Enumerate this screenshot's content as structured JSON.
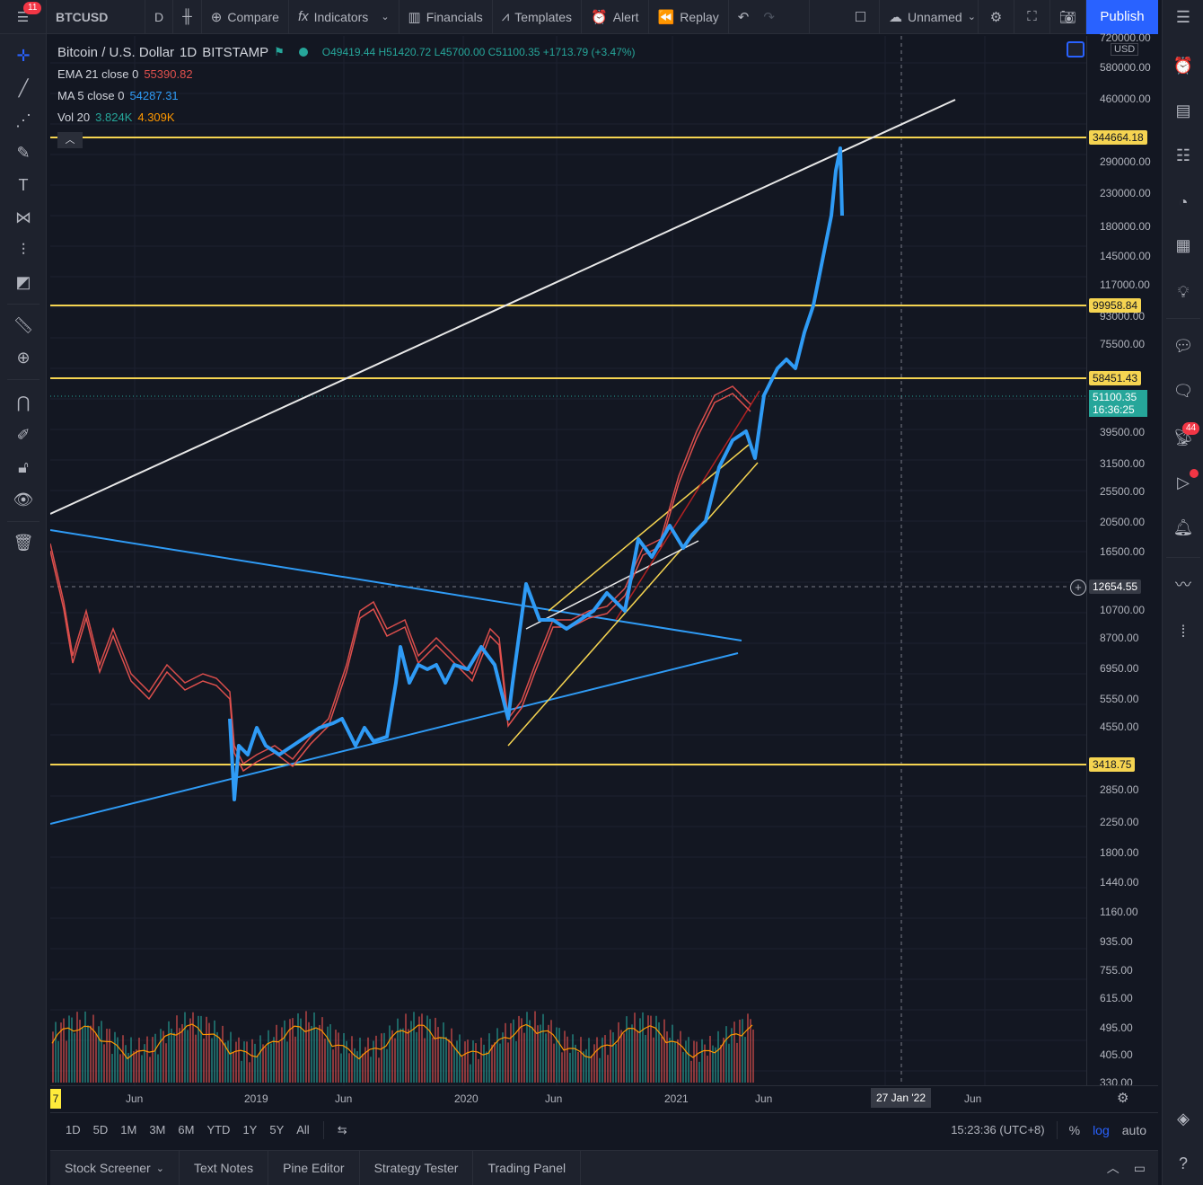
{
  "toolbar": {
    "notif_count": "11",
    "symbol": "BTCUSD",
    "interval": "D",
    "compare": "Compare",
    "indicators": "Indicators",
    "financials": "Financials",
    "templates": "Templates",
    "alert": "Alert",
    "replay": "Replay",
    "layout_name": "Unnamed",
    "publish": "Publish"
  },
  "legend": {
    "title": "Bitcoin / U.S. Dollar",
    "interval": "1D",
    "exchange": "BITSTAMP",
    "ohlc": "O49419.44 H51420.72 L45700.00 C51100.35 +1713.79 (+3.47%)",
    "ema_label": "EMA 21 close 0",
    "ema_value": "55390.82",
    "ma_label": "MA 5 close 0",
    "ma_value": "54287.31",
    "vol_label": "Vol 20",
    "vol_value1": "3.824K",
    "vol_value2": "4.309K"
  },
  "price_axis": {
    "currency": "USD",
    "labels": [
      "720000.00",
      "580000.00",
      "460000.00",
      "290000.00",
      "230000.00",
      "180000.00",
      "145000.00",
      "117000.00",
      "93000.00",
      "75500.00",
      "39500.00",
      "31500.00",
      "25500.00",
      "20500.00",
      "16500.00",
      "10700.00",
      "8700.00",
      "6950.00",
      "5550.00",
      "4550.00",
      "2850.00",
      "2250.00",
      "1800.00",
      "1440.00",
      "1160.00",
      "935.00",
      "755.00",
      "615.00",
      "495.00",
      "405.00",
      "330.00"
    ],
    "tags": {
      "level1": "344664.18",
      "level2": "99958.84",
      "level3": "58451.43",
      "last_price": "51100.35",
      "countdown": "16:36:25",
      "crosshair": "12654.55",
      "level4": "3418.75"
    }
  },
  "time_axis": {
    "labels": [
      "Jun",
      "2019",
      "Jun",
      "2020",
      "Jun",
      "2021",
      "Jun",
      "Jun"
    ],
    "crosshair": "27 Jan '22",
    "start_marker": "7"
  },
  "range_bar": {
    "ranges": [
      "1D",
      "5D",
      "1M",
      "3M",
      "6M",
      "YTD",
      "1Y",
      "5Y",
      "All"
    ],
    "clock": "15:23:36 (UTC+8)",
    "percent": "%",
    "log": "log",
    "auto": "auto"
  },
  "bottom_tabs": [
    "Stock Screener",
    "Text Notes",
    "Pine Editor",
    "Strategy Tester",
    "Trading Panel"
  ],
  "sidebar": {
    "badge_count": "44"
  },
  "colors": {
    "background": "#131722",
    "panel": "#1e222d",
    "accent": "#2962ff",
    "yellow_line": "#f5d451",
    "blue_line": "#2f9bf5",
    "ema_red": "#e0504d",
    "up_green": "#26a69a",
    "down_red": "#ef5350"
  }
}
